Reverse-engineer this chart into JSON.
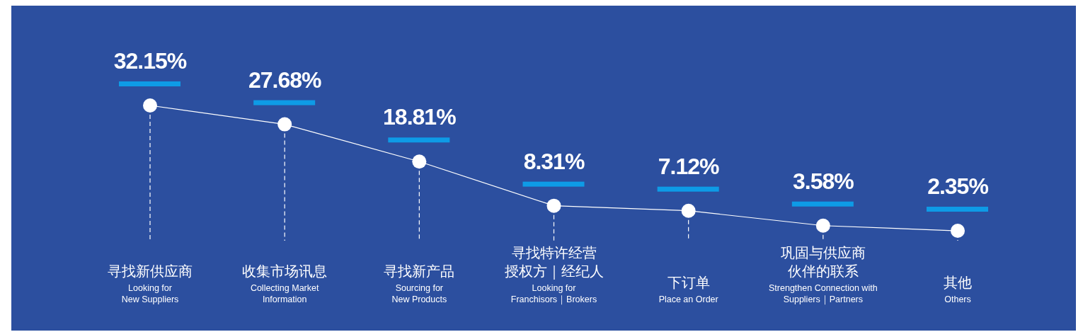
{
  "chart_data": {
    "type": "line",
    "categories": [
      "寻找新供应商\nLooking for\nNew Suppliers",
      "收集市场讯息\nCollecting Market\nInformation",
      "寻找新产品\nSourcing for\nNew Products",
      "寻找特许经营授权方｜经纪人\nLooking for\nFranchisors｜Brokers",
      "下订单\nPlace an Order",
      "巩固与供应商伙伴的联系\nStrengthen Connection with\nSuppliers｜Partners",
      "其他\nOthers"
    ],
    "series": [
      {
        "color": "#ffffff",
        "values": [
          32.15,
          27.68,
          18.81,
          8.31,
          7.12,
          3.58,
          2.35
        ],
        "value_labels": [
          "32.15%",
          "27.68%",
          "18.81%",
          "8.31%",
          "7.12%",
          "3.58%",
          "2.35%"
        ]
      }
    ],
    "marker": "circle",
    "line_style": "solid",
    "grid": "x",
    "legend": false
  }
}
